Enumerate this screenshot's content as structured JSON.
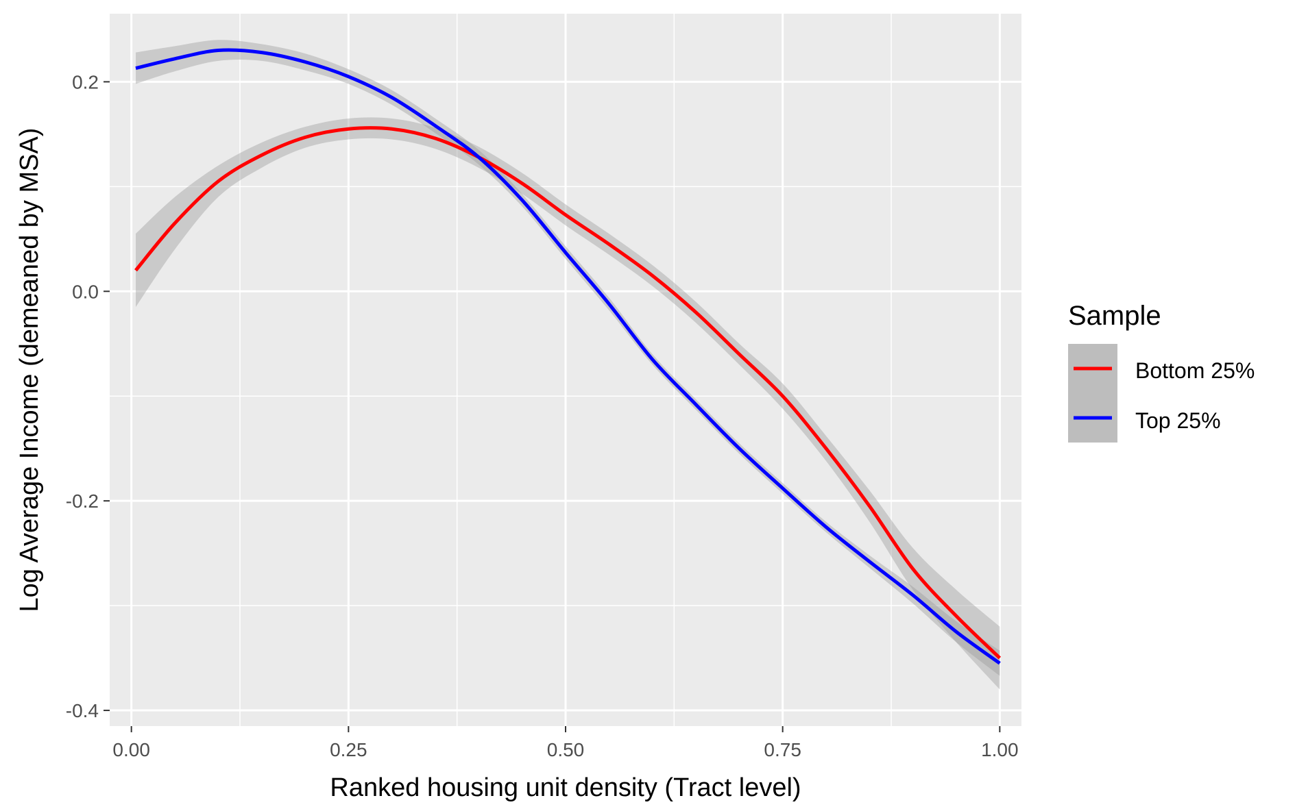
{
  "chart_data": {
    "type": "line",
    "title": "",
    "xlabel": "Ranked housing unit density (Tract level)",
    "ylabel": "Log Average Income (demeaned by MSA)",
    "xlim": [
      -0.025,
      1.025
    ],
    "ylim": [
      -0.415,
      0.265
    ],
    "x_ticks": [
      0.0,
      0.25,
      0.5,
      0.75,
      1.0
    ],
    "x_tick_labels": [
      "0.00",
      "0.25",
      "0.50",
      "0.75",
      "1.00"
    ],
    "y_ticks": [
      -0.4,
      -0.2,
      0.0,
      0.2
    ],
    "y_tick_labels": [
      "-0.4",
      "-0.2",
      "0.0",
      "0.2"
    ],
    "grid": true,
    "legend": {
      "title": "Sample",
      "position": "right"
    },
    "series": [
      {
        "name": "Bottom 25%",
        "color": "#ff0000",
        "x": [
          0.005,
          0.05,
          0.1,
          0.15,
          0.2,
          0.25,
          0.3,
          0.35,
          0.4,
          0.45,
          0.5,
          0.55,
          0.6,
          0.65,
          0.7,
          0.75,
          0.8,
          0.85,
          0.9,
          0.95,
          1.0
        ],
        "y": [
          0.02,
          0.065,
          0.105,
          0.13,
          0.147,
          0.155,
          0.155,
          0.146,
          0.128,
          0.103,
          0.073,
          0.045,
          0.015,
          -0.02,
          -0.06,
          -0.1,
          -0.15,
          -0.205,
          -0.265,
          -0.31,
          -0.35
        ],
        "band_half_width": [
          0.035,
          0.025,
          0.015,
          0.012,
          0.01,
          0.01,
          0.01,
          0.01,
          0.01,
          0.01,
          0.01,
          0.01,
          0.01,
          0.01,
          0.01,
          0.012,
          0.012,
          0.015,
          0.02,
          0.025,
          0.03
        ]
      },
      {
        "name": "Top 25%",
        "color": "#0000ff",
        "x": [
          0.005,
          0.05,
          0.1,
          0.15,
          0.2,
          0.25,
          0.3,
          0.35,
          0.4,
          0.45,
          0.5,
          0.55,
          0.6,
          0.65,
          0.7,
          0.75,
          0.8,
          0.85,
          0.9,
          0.95,
          1.0
        ],
        "y": [
          0.213,
          0.222,
          0.23,
          0.228,
          0.219,
          0.205,
          0.185,
          0.158,
          0.128,
          0.087,
          0.037,
          -0.012,
          -0.065,
          -0.108,
          -0.15,
          -0.188,
          -0.225,
          -0.258,
          -0.29,
          -0.325,
          -0.355
        ],
        "band_half_width": [
          0.015,
          0.012,
          0.01,
          0.008,
          0.008,
          0.007,
          0.007,
          0.007,
          0.007,
          0.006,
          0.006,
          0.006,
          0.005,
          0.005,
          0.005,
          0.005,
          0.005,
          0.006,
          0.008,
          0.01,
          0.012
        ]
      }
    ]
  }
}
